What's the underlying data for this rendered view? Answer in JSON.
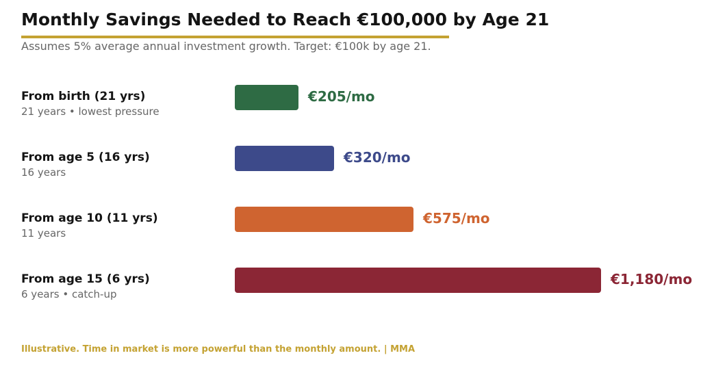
{
  "chart_data": {
    "type": "bar",
    "orientation": "horizontal",
    "title": "Monthly Savings Needed to Reach €100,000 by Age 21",
    "subtitle": "Assumes 5% average annual investment growth. Target: €100k by age 21.",
    "categories": [
      "From birth (21 yrs)",
      "From age 5 (16 yrs)",
      "From age 10 (11 yrs)",
      "From age 15 (6 yrs)"
    ],
    "category_notes": [
      "21 years • lowest pressure",
      "16 years",
      "11 years",
      "6 years • catch-up"
    ],
    "values": [
      205,
      320,
      575,
      1180
    ],
    "value_labels": [
      "€205/mo",
      "€320/mo",
      "€575/mo",
      "€1,180/mo"
    ],
    "colors": [
      "#2E6B44",
      "#3D4A8A",
      "#CF6430",
      "#8B2635"
    ],
    "xlim": [
      0,
      1180
    ],
    "grid": false,
    "legend": "none"
  },
  "accent_color": "#C4A232",
  "footer": "Illustrative. Time in market is more powerful than the monthly amount.  |  MMA"
}
